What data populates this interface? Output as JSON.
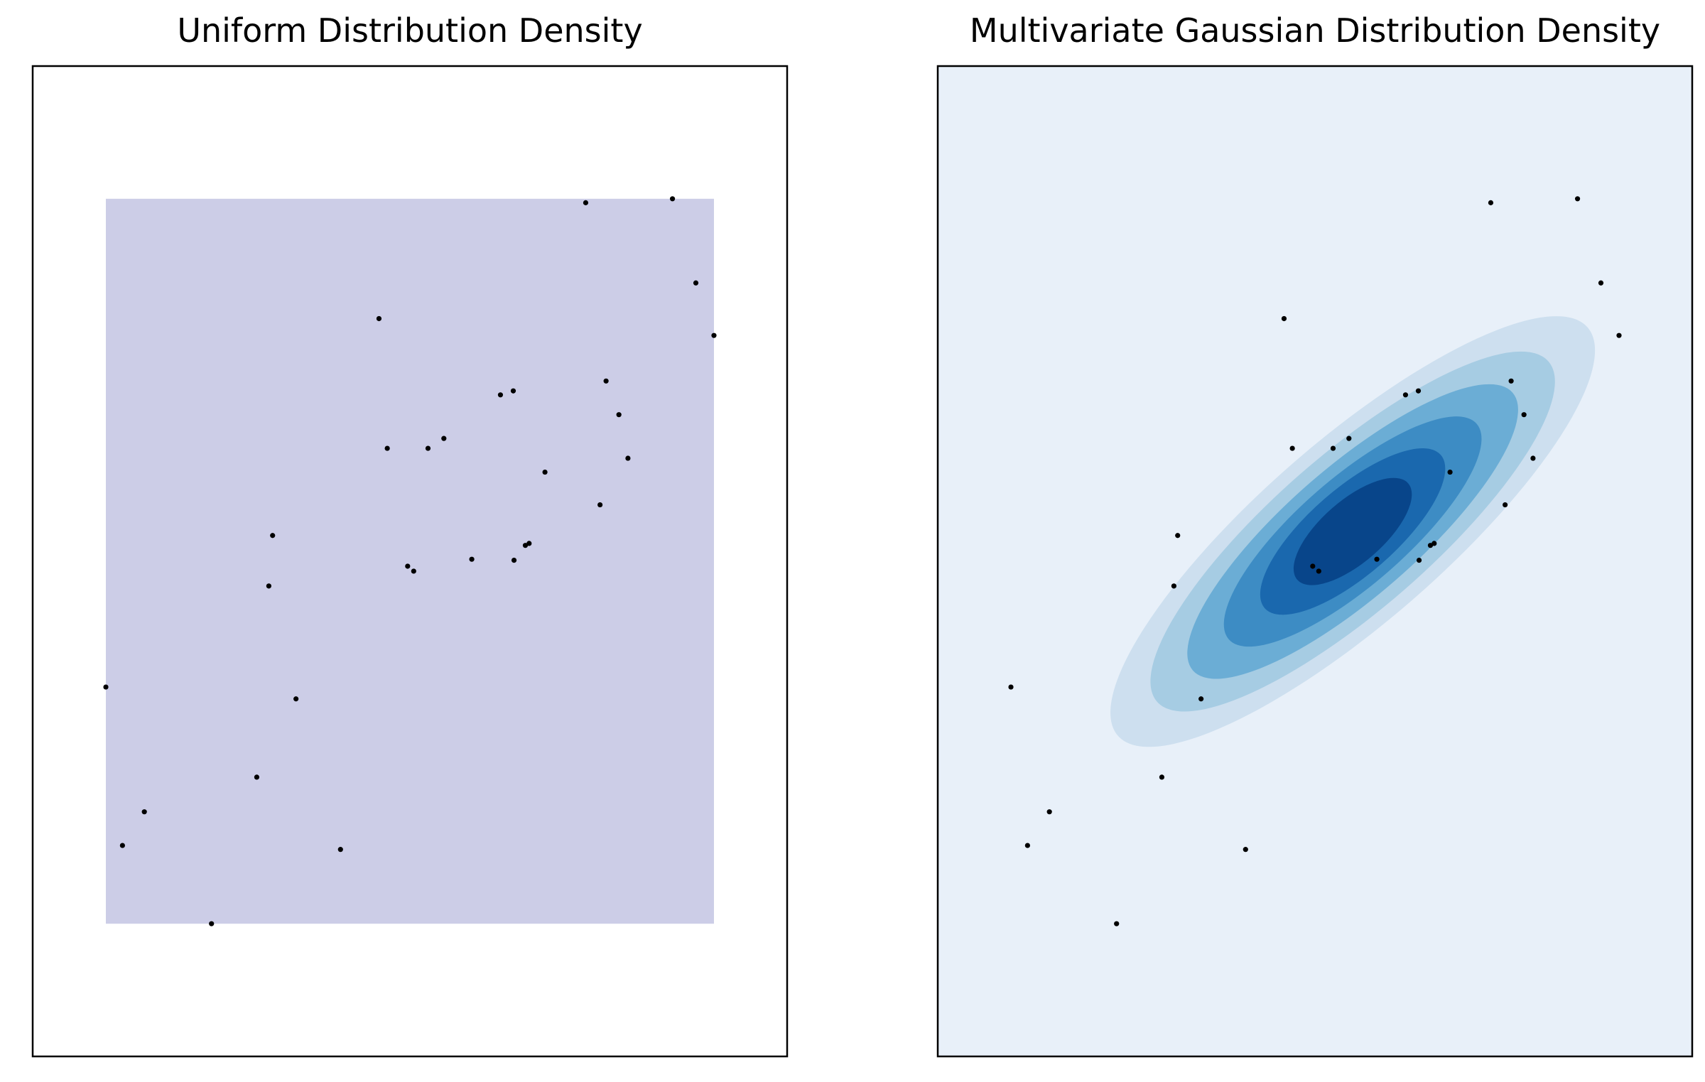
{
  "chart_data": [
    {
      "type": "scatter",
      "title": "Uniform Distribution Density",
      "xlabel": "",
      "ylabel": "",
      "xlim": [
        0,
        1
      ],
      "ylim": [
        0,
        1
      ],
      "xticks": [],
      "yticks": [],
      "grid": false,
      "background": "#ffffff",
      "uniform_support": {
        "x": [
          0.097,
          0.903
        ],
        "y": [
          0.134,
          0.866
        ]
      },
      "uniform_fill_color": "#cccde7",
      "point_color": "#000000",
      "points": [
        {
          "x": 0.097,
          "y": 0.373
        },
        {
          "x": 0.119,
          "y": 0.213
        },
        {
          "x": 0.148,
          "y": 0.247
        },
        {
          "x": 0.237,
          "y": 0.134
        },
        {
          "x": 0.297,
          "y": 0.282
        },
        {
          "x": 0.313,
          "y": 0.475
        },
        {
          "x": 0.318,
          "y": 0.526
        },
        {
          "x": 0.349,
          "y": 0.361
        },
        {
          "x": 0.408,
          "y": 0.209
        },
        {
          "x": 0.459,
          "y": 0.745
        },
        {
          "x": 0.47,
          "y": 0.614
        },
        {
          "x": 0.497,
          "y": 0.495
        },
        {
          "x": 0.505,
          "y": 0.49
        },
        {
          "x": 0.524,
          "y": 0.614
        },
        {
          "x": 0.545,
          "y": 0.624
        },
        {
          "x": 0.582,
          "y": 0.502
        },
        {
          "x": 0.62,
          "y": 0.668
        },
        {
          "x": 0.637,
          "y": 0.672
        },
        {
          "x": 0.638,
          "y": 0.501
        },
        {
          "x": 0.653,
          "y": 0.516
        },
        {
          "x": 0.658,
          "y": 0.518
        },
        {
          "x": 0.679,
          "y": 0.59
        },
        {
          "x": 0.733,
          "y": 0.862
        },
        {
          "x": 0.752,
          "y": 0.557
        },
        {
          "x": 0.76,
          "y": 0.682
        },
        {
          "x": 0.777,
          "y": 0.648
        },
        {
          "x": 0.789,
          "y": 0.604
        },
        {
          "x": 0.848,
          "y": 0.866
        },
        {
          "x": 0.879,
          "y": 0.781
        },
        {
          "x": 0.903,
          "y": 0.728
        }
      ]
    },
    {
      "type": "contour",
      "title": "Multivariate Gaussian Distribution Density",
      "xlabel": "",
      "ylabel": "",
      "xlim": [
        0,
        1
      ],
      "ylim": [
        0,
        1
      ],
      "xticks": [],
      "yticks": [],
      "grid": false,
      "colormap": "Blues",
      "background": "#e8f0f9",
      "mean": [
        0.55,
        0.53
      ],
      "contour_levels": [
        {
          "rx": 0.36,
          "ry": 0.105,
          "color": "#cddfef"
        },
        {
          "rx": 0.3,
          "ry": 0.09,
          "color": "#a6cce3"
        },
        {
          "rx": 0.245,
          "ry": 0.075,
          "color": "#6badd5"
        },
        {
          "rx": 0.19,
          "ry": 0.062,
          "color": "#3d8cc4"
        },
        {
          "rx": 0.135,
          "ry": 0.05,
          "color": "#1a68ae"
        },
        {
          "rx": 0.085,
          "ry": 0.036,
          "color": "#08458a"
        }
      ],
      "ellipse_angle_deg": 41,
      "points_same_as_left": true,
      "point_color": "#000000"
    }
  ]
}
